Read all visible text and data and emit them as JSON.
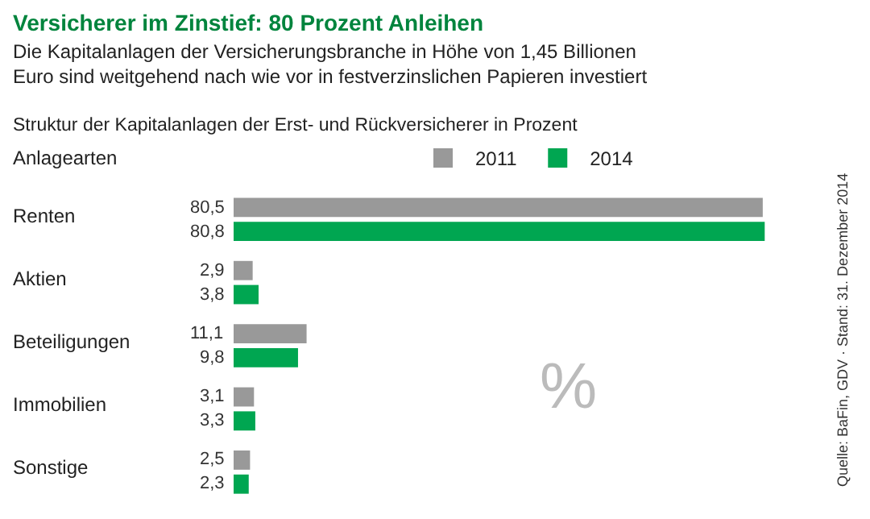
{
  "chart_data": {
    "type": "bar",
    "orientation": "horizontal",
    "title": "Versicherer im Zinstief: 80 Prozent Anleihen",
    "subtitle": "Die Kapitalanlagen der Versicherungsbranche in Höhe von 1,45 Billionen Euro sind weitgehend nach wie vor in festverzinslichen Papieren investiert",
    "ylabel": "Anlagearten",
    "categories": [
      "Renten",
      "Aktien",
      "Beteiligungen",
      "Immobilien",
      "Sonstige"
    ],
    "series": [
      {
        "name": "2011",
        "color": "#999999",
        "values": [
          80.5,
          2.9,
          11.1,
          3.1,
          2.5
        ],
        "value_labels": [
          "80,5",
          "2,9",
          "11,1",
          "3,1",
          "2,5"
        ]
      },
      {
        "name": "2014",
        "color": "#00a651",
        "values": [
          80.8,
          3.8,
          9.8,
          3.3,
          2.3
        ],
        "value_labels": [
          "80,8",
          "3,8",
          "9,8",
          "3,3",
          "2,3"
        ]
      }
    ],
    "tick_labels": false,
    "legend": "top",
    "annotations": [
      "Struktur der Kapitalanlagen der Erst- und Rückversicherer in Prozent",
      "%",
      "Quelle: BaFin, GDV · Stand: 31. Dezember 2014"
    ]
  }
}
